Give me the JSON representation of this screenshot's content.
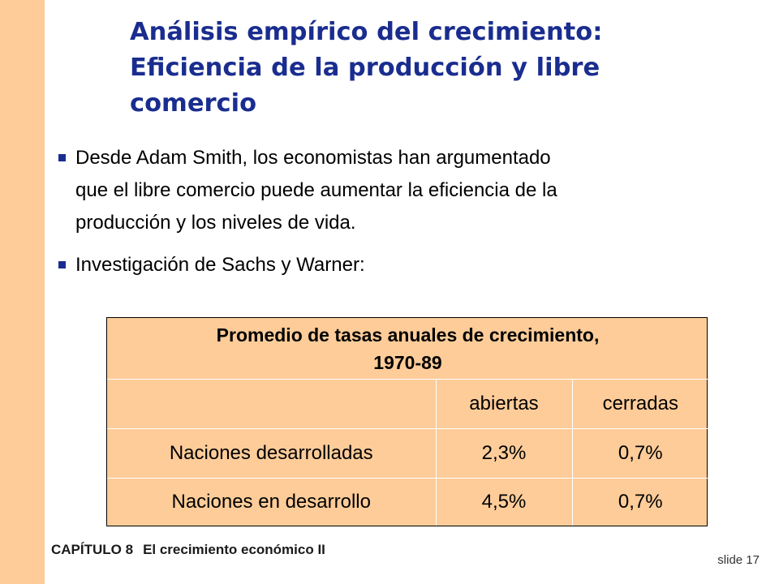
{
  "title": {
    "lines": [
      "Análisis empírico del crecimiento:",
      "Eficiencia de la producción y libre",
      "comercio"
    ]
  },
  "bullets": [
    {
      "lines": [
        "Desde Adam Smith, los economistas han argumentado",
        "que el libre comercio puede aumentar la eficiencia de la",
        "producción y los niveles de vida."
      ]
    },
    {
      "lines": [
        "Investigación de Sachs y Warner:"
      ]
    }
  ],
  "table": {
    "caption_lines": [
      "Promedio de tasas anuales de crecimiento,",
      "1970-89"
    ],
    "columns": [
      "",
      "abiertas",
      "cerradas"
    ],
    "rows": [
      [
        "Naciones desarrolladas",
        "2,3%",
        "0,7%"
      ],
      [
        "Naciones en desarrollo",
        "4,5%",
        "0,7%"
      ]
    ]
  },
  "footer": {
    "chapter": "CAPÍTULO 8",
    "chapter_title": "El crecimiento económico II",
    "slide_label": "slide 17"
  },
  "colors": {
    "accent_bar": "#fdcc99",
    "title_blue": "#1a2d8f",
    "table_fill": "#fdcc99"
  }
}
